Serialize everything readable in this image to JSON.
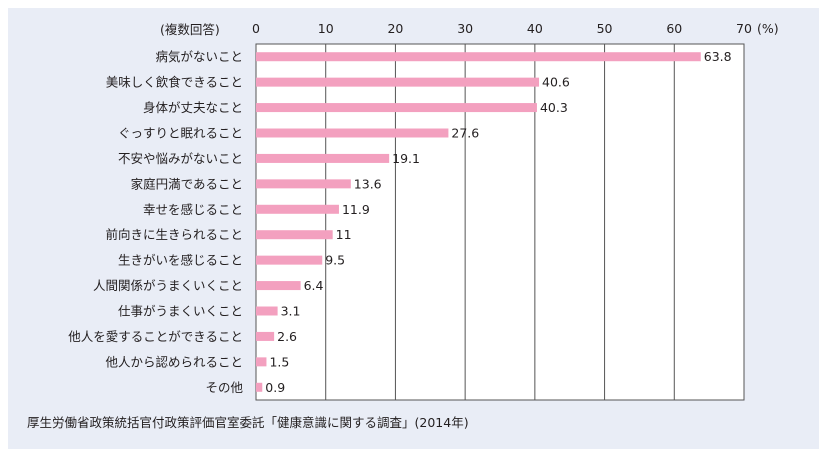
{
  "chart_data": {
    "type": "bar",
    "orientation": "horizontal",
    "note": "(複数回答)",
    "unit": "(%)",
    "xlim": [
      0,
      70
    ],
    "ticks": [
      0,
      10,
      20,
      30,
      40,
      50,
      60,
      70
    ],
    "grid": true,
    "categories": [
      "病気がないこと",
      "美味しく飲食できること",
      "身体が丈夫なこと",
      "ぐっすりと眠れること",
      "不安や悩みがないこと",
      "家庭円満であること",
      "幸せを感じること",
      "前向きに生きられること",
      "生きがいを感じること",
      "人間関係がうまくいくこと",
      "仕事がうまくいくこと",
      "他人を愛することができること",
      "他人から認められること",
      "その他"
    ],
    "values": [
      63.8,
      40.6,
      40.3,
      27.6,
      19.1,
      13.6,
      11.9,
      11,
      9.5,
      6.4,
      3.1,
      2.6,
      1.5,
      0.9
    ],
    "value_labels": [
      "63.8",
      "40.6",
      "40.3",
      "27.6",
      "19.1",
      "13.6",
      "11.9",
      "11",
      "9.5",
      "6.4",
      "3.1",
      "2.6",
      "1.5",
      "0.9"
    ],
    "bar_color": "#f3a0bf",
    "source": "厚生労働省政策統括官付政策評価官室委託「健康意識に関する調査」(2014年)"
  }
}
